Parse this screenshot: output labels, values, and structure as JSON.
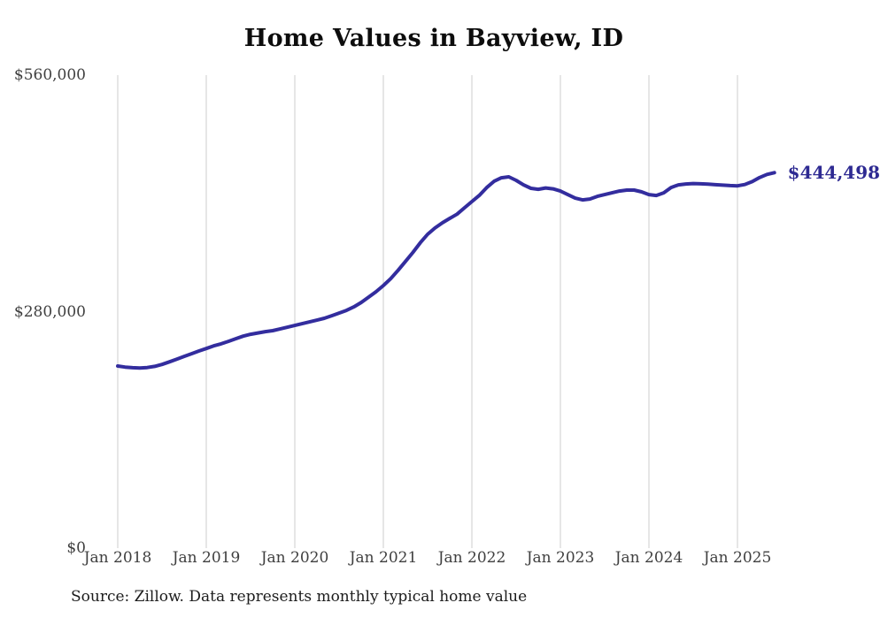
{
  "chart_data": {
    "type": "line",
    "title": "Home Values in Bayview, ID",
    "source_note": "Source: Zillow. Data represents monthly typical home value",
    "annotation_label": "$444,498",
    "line_color": "#332d9e",
    "grid_color": "#cccccc",
    "background_color": "#ffffff",
    "grid": "vertical-only",
    "legend": "none",
    "ylim": [
      0,
      560000
    ],
    "ylabel": "",
    "xlabel": "",
    "y_ticks": [
      {
        "value": 0,
        "label": "$0"
      },
      {
        "value": 280000,
        "label": "$280,000"
      },
      {
        "value": 560000,
        "label": "$560,000"
      }
    ],
    "x_ticks": [
      {
        "month_index": 0,
        "label": "Jan 2018"
      },
      {
        "month_index": 12,
        "label": "Jan 2019"
      },
      {
        "month_index": 24,
        "label": "Jan 2020"
      },
      {
        "month_index": 36,
        "label": "Jan 2021"
      },
      {
        "month_index": 48,
        "label": "Jan 2022"
      },
      {
        "month_index": 60,
        "label": "Jan 2023"
      },
      {
        "month_index": 72,
        "label": "Jan 2024"
      },
      {
        "month_index": 84,
        "label": "Jan 2025"
      }
    ],
    "series": [
      {
        "name": "Monthly typical home value",
        "start_month": "2018-01",
        "end_month": "2025-06",
        "latest_value": 444498,
        "values": [
          215600,
          214400,
          213600,
          213300,
          213800,
          215200,
          217500,
          220500,
          223800,
          227000,
          230200,
          233400,
          236400,
          239500,
          241900,
          244800,
          248000,
          251000,
          253200,
          254800,
          256300,
          257500,
          259500,
          261600,
          263700,
          265800,
          267900,
          270000,
          272100,
          275200,
          278300,
          281500,
          285600,
          290900,
          297200,
          303500,
          310900,
          319000,
          329000,
          339500,
          350000,
          361500,
          371600,
          379000,
          385200,
          390400,
          395500,
          403000,
          410300,
          417500,
          426900,
          434300,
          438500,
          439600,
          435400,
          430100,
          426000,
          424900,
          426400,
          425400,
          422800,
          418600,
          414400,
          412300,
          413400,
          416500,
          418600,
          420700,
          422800,
          423900,
          423900,
          421800,
          418600,
          417500,
          420700,
          427000,
          430100,
          431200,
          431700,
          431400,
          430900,
          430300,
          429800,
          429300,
          429000,
          430500,
          434000,
          438800,
          442500,
          444498
        ]
      }
    ]
  }
}
